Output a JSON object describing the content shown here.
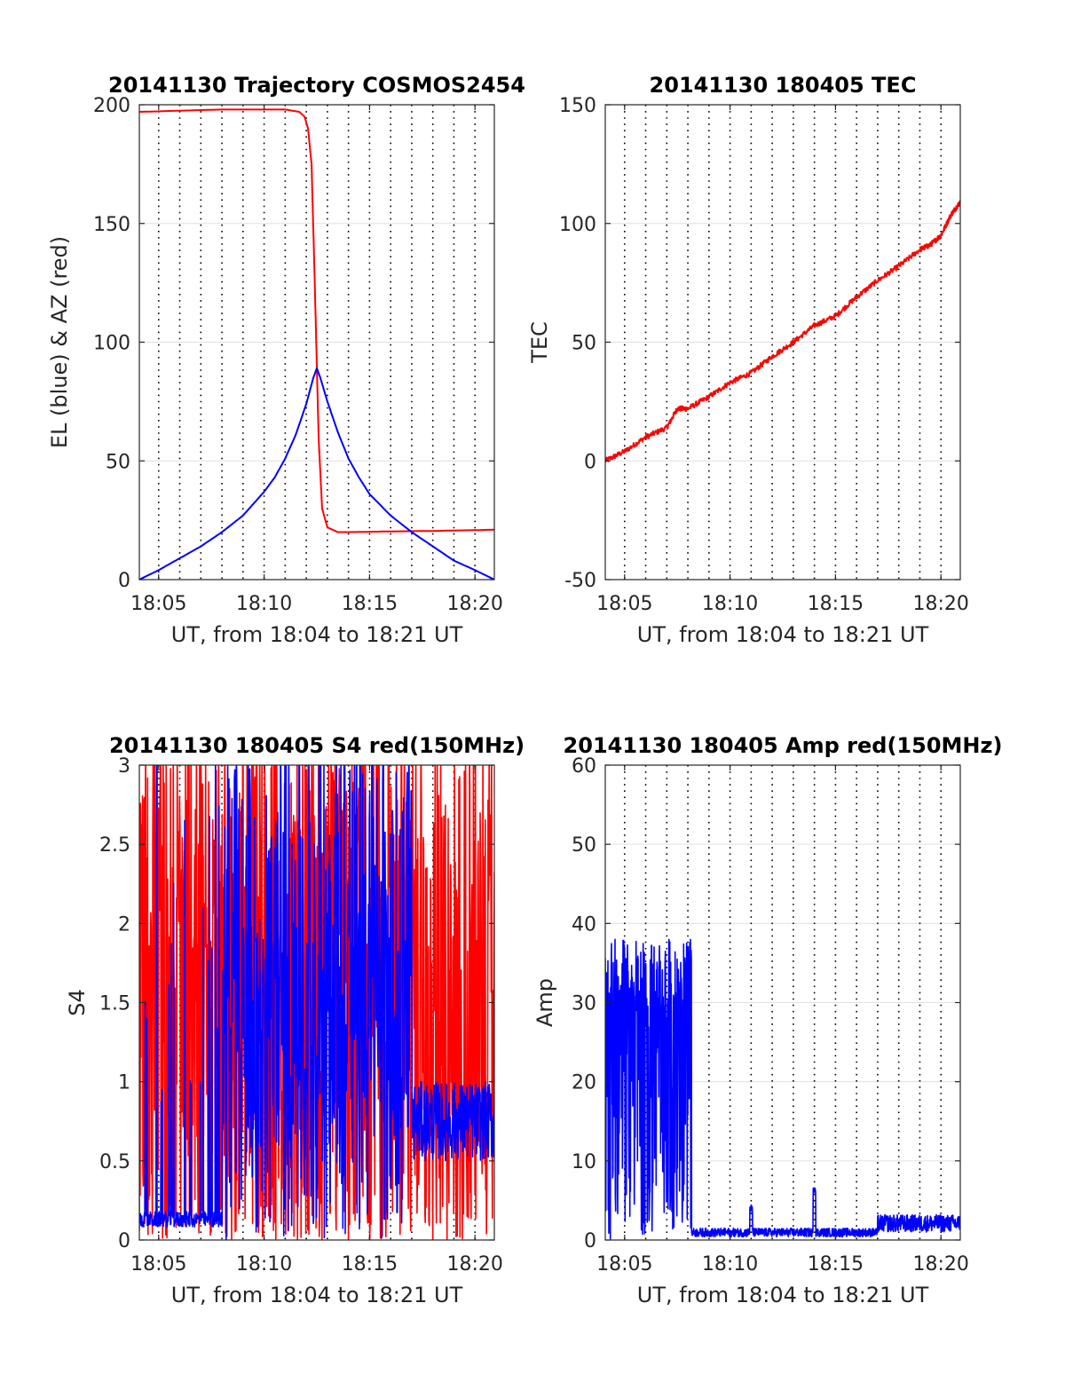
{
  "colors": {
    "red": "#ff0000",
    "blue": "#0000ff",
    "dotted_grid": "#000000",
    "y_grid": "#e0e0e0"
  },
  "chart_data": [
    {
      "id": "trajectory",
      "type": "line",
      "title": "20141130 Trajectory COSMOS2454",
      "xlabel": "UT, from 18:04 to 18:21 UT",
      "ylabel": "EL (blue) & AZ (red)",
      "xlim": [
        "18:04:05",
        "18:20:55"
      ],
      "ylim": [
        0,
        200
      ],
      "xticks": [
        "18:05",
        "18:10",
        "18:15",
        "18:20"
      ],
      "yticks": [
        0,
        50,
        100,
        150,
        200
      ],
      "vertical_grid_minutes": [
        "18:05",
        "18:06",
        "18:07",
        "18:08",
        "18:09",
        "18:10",
        "18:11",
        "18:12",
        "18:13",
        "18:14",
        "18:15",
        "18:16",
        "18:17",
        "18:18",
        "18:19",
        "18:20"
      ],
      "series": [
        {
          "color": "red",
          "x": [
            "18:04:05",
            "18:06:00",
            "18:08:00",
            "18:10:00",
            "18:11:00",
            "18:11:40",
            "18:11:55",
            "18:12:05",
            "18:12:15",
            "18:12:25",
            "18:12:35",
            "18:12:45",
            "18:13:00",
            "18:13:30",
            "18:14:00",
            "18:16:00",
            "18:18:00",
            "18:20:55"
          ],
          "y": [
            197,
            197.5,
            198,
            198,
            198,
            197,
            195,
            190,
            175,
            120,
            60,
            30,
            22,
            20,
            20,
            20.3,
            20.5,
            21
          ]
        },
        {
          "color": "blue",
          "x": [
            "18:04:05",
            "18:05:00",
            "18:06:00",
            "18:07:00",
            "18:08:00",
            "18:09:00",
            "18:10:00",
            "18:10:30",
            "18:11:00",
            "18:11:30",
            "18:12:00",
            "18:12:20",
            "18:12:30",
            "18:12:40",
            "18:13:00",
            "18:13:30",
            "18:14:00",
            "18:14:30",
            "18:15:00",
            "18:16:00",
            "18:17:00",
            "18:18:00",
            "18:19:00",
            "18:20:00",
            "18:20:55"
          ],
          "y": [
            0,
            4,
            9,
            14,
            20,
            27,
            37,
            43,
            51,
            61,
            74,
            85,
            89,
            85,
            75,
            62,
            51,
            43,
            36,
            27,
            20,
            14,
            8,
            4,
            0
          ]
        }
      ]
    },
    {
      "id": "tec",
      "type": "line",
      "title": "20141130 180405 TEC",
      "xlabel": "UT, from 18:04 to 18:21 UT",
      "ylabel": "TEC",
      "xlim": [
        "18:04:05",
        "18:20:55"
      ],
      "ylim": [
        -50,
        150
      ],
      "xticks": [
        "18:05",
        "18:10",
        "18:15",
        "18:20"
      ],
      "yticks": [
        -50,
        0,
        50,
        100,
        150
      ],
      "vertical_grid_minutes": [
        "18:05",
        "18:06",
        "18:07",
        "18:08",
        "18:09",
        "18:10",
        "18:11",
        "18:12",
        "18:13",
        "18:14",
        "18:15",
        "18:16",
        "18:17",
        "18:18",
        "18:19",
        "18:20"
      ],
      "series": [
        {
          "color": "red",
          "x": [
            "18:04:05",
            "18:05:00",
            "18:06:00",
            "18:07:00",
            "18:07:30",
            "18:08:00",
            "18:09:00",
            "18:10:00",
            "18:11:00",
            "18:12:00",
            "18:13:00",
            "18:14:00",
            "18:15:00",
            "18:16:00",
            "18:17:00",
            "18:18:00",
            "18:19:00",
            "18:19:30",
            "18:20:00",
            "18:20:30",
            "18:20:55"
          ],
          "y": [
            0,
            4,
            10,
            14,
            22,
            22,
            27,
            33,
            37,
            44,
            50,
            57,
            61,
            69,
            76,
            82,
            89,
            91,
            95,
            104,
            109
          ]
        }
      ]
    },
    {
      "id": "s4",
      "type": "line",
      "title": "20141130 180405 S4 red(150MHz)",
      "xlabel": "UT, from 18:04 to 18:21 UT",
      "ylabel": "S4",
      "xlim": [
        "18:04:05",
        "18:20:55"
      ],
      "ylim": [
        0,
        3
      ],
      "xticks": [
        "18:05",
        "18:10",
        "18:15",
        "18:20"
      ],
      "yticks": [
        0,
        0.5,
        1,
        1.5,
        2,
        2.5,
        3
      ],
      "vertical_grid_minutes": [
        "18:05",
        "18:06",
        "18:07",
        "18:08",
        "18:09",
        "18:10",
        "18:11",
        "18:12",
        "18:13",
        "18:14",
        "18:15",
        "18:16",
        "18:17",
        "18:18",
        "18:19",
        "18:20"
      ],
      "series": [
        {
          "color": "red",
          "pattern": "saturated noise, oscillating between 0 and 3 across the whole interval",
          "x": [
            "18:04:05",
            "18:20:55"
          ],
          "y_range": [
            0,
            3
          ]
        },
        {
          "color": "blue",
          "pattern": "near 0.1 until 18:08 with bursts to 3, saturated noise 18:08–18:17, then 0.5–1.0 after 18:17",
          "x": [
            "18:04:05",
            "18:08:00",
            "18:17:00",
            "18:20:55"
          ],
          "y": [
            0.1,
            0.1,
            0.7,
            0.7
          ]
        }
      ]
    },
    {
      "id": "amp",
      "type": "line",
      "title": "20141130 180405 Amp red(150MHz)",
      "xlabel": "UT, from 18:04 to 18:21 UT",
      "ylabel": "Amp",
      "xlim": [
        "18:04:05",
        "18:20:55"
      ],
      "ylim": [
        0,
        60
      ],
      "xticks": [
        "18:05",
        "18:10",
        "18:15",
        "18:20"
      ],
      "yticks": [
        0,
        10,
        20,
        30,
        40,
        50,
        60
      ],
      "vertical_grid_minutes": [
        "18:05",
        "18:06",
        "18:07",
        "18:08",
        "18:09",
        "18:10",
        "18:11",
        "18:12",
        "18:13",
        "18:14",
        "18:15",
        "18:16",
        "18:17",
        "18:18",
        "18:19",
        "18:20"
      ],
      "series": [
        {
          "color": "blue",
          "pattern": "dense noise 0–40 from 18:04 to 18:08, then near 1 with spikes at 18:11 (~4) and 18:14 (~7), rising to ~2–3 after 18:17",
          "x": [
            "18:04:05",
            "18:08:00",
            "18:08:10",
            "18:11:00",
            "18:14:00",
            "18:17:00",
            "18:20:55"
          ],
          "y": [
            38,
            38,
            1,
            4,
            7,
            2,
            3
          ]
        }
      ]
    }
  ]
}
